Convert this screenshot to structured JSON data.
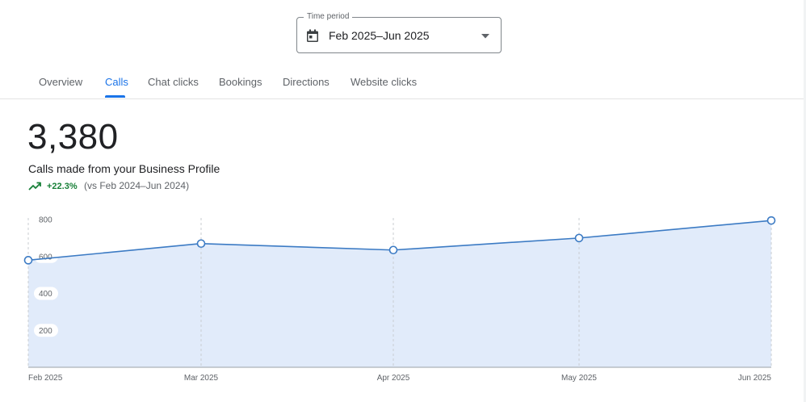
{
  "time_period": {
    "legend": "Time period",
    "value": "Feb 2025–Jun 2025",
    "icon": "calendar-icon"
  },
  "tabs": [
    {
      "label": "Overview"
    },
    {
      "label": "Calls",
      "active": true
    },
    {
      "label": "Chat clicks"
    },
    {
      "label": "Bookings"
    },
    {
      "label": "Directions"
    },
    {
      "label": "Website clicks"
    }
  ],
  "metric": {
    "value": "3,380",
    "label": "Calls made from your Business Profile",
    "trend_pct": "+22.3%",
    "trend_compare": "(vs Feb 2024–Jun 2024)",
    "trend_color": "#188038"
  },
  "colors": {
    "accent": "#1a73e8",
    "line": "#3c7bc4",
    "area": "#e1ebfa"
  },
  "chart_data": {
    "type": "area",
    "categories": [
      "Feb 2025",
      "Mar 2025",
      "Apr 2025",
      "May 2025",
      "Jun 2025"
    ],
    "values": [
      580,
      670,
      635,
      700,
      795
    ],
    "ylim": [
      0,
      800
    ],
    "yticks": [
      200,
      400,
      600,
      800
    ],
    "grid": "vertical dashed",
    "title": "",
    "xlabel": "",
    "ylabel": ""
  }
}
